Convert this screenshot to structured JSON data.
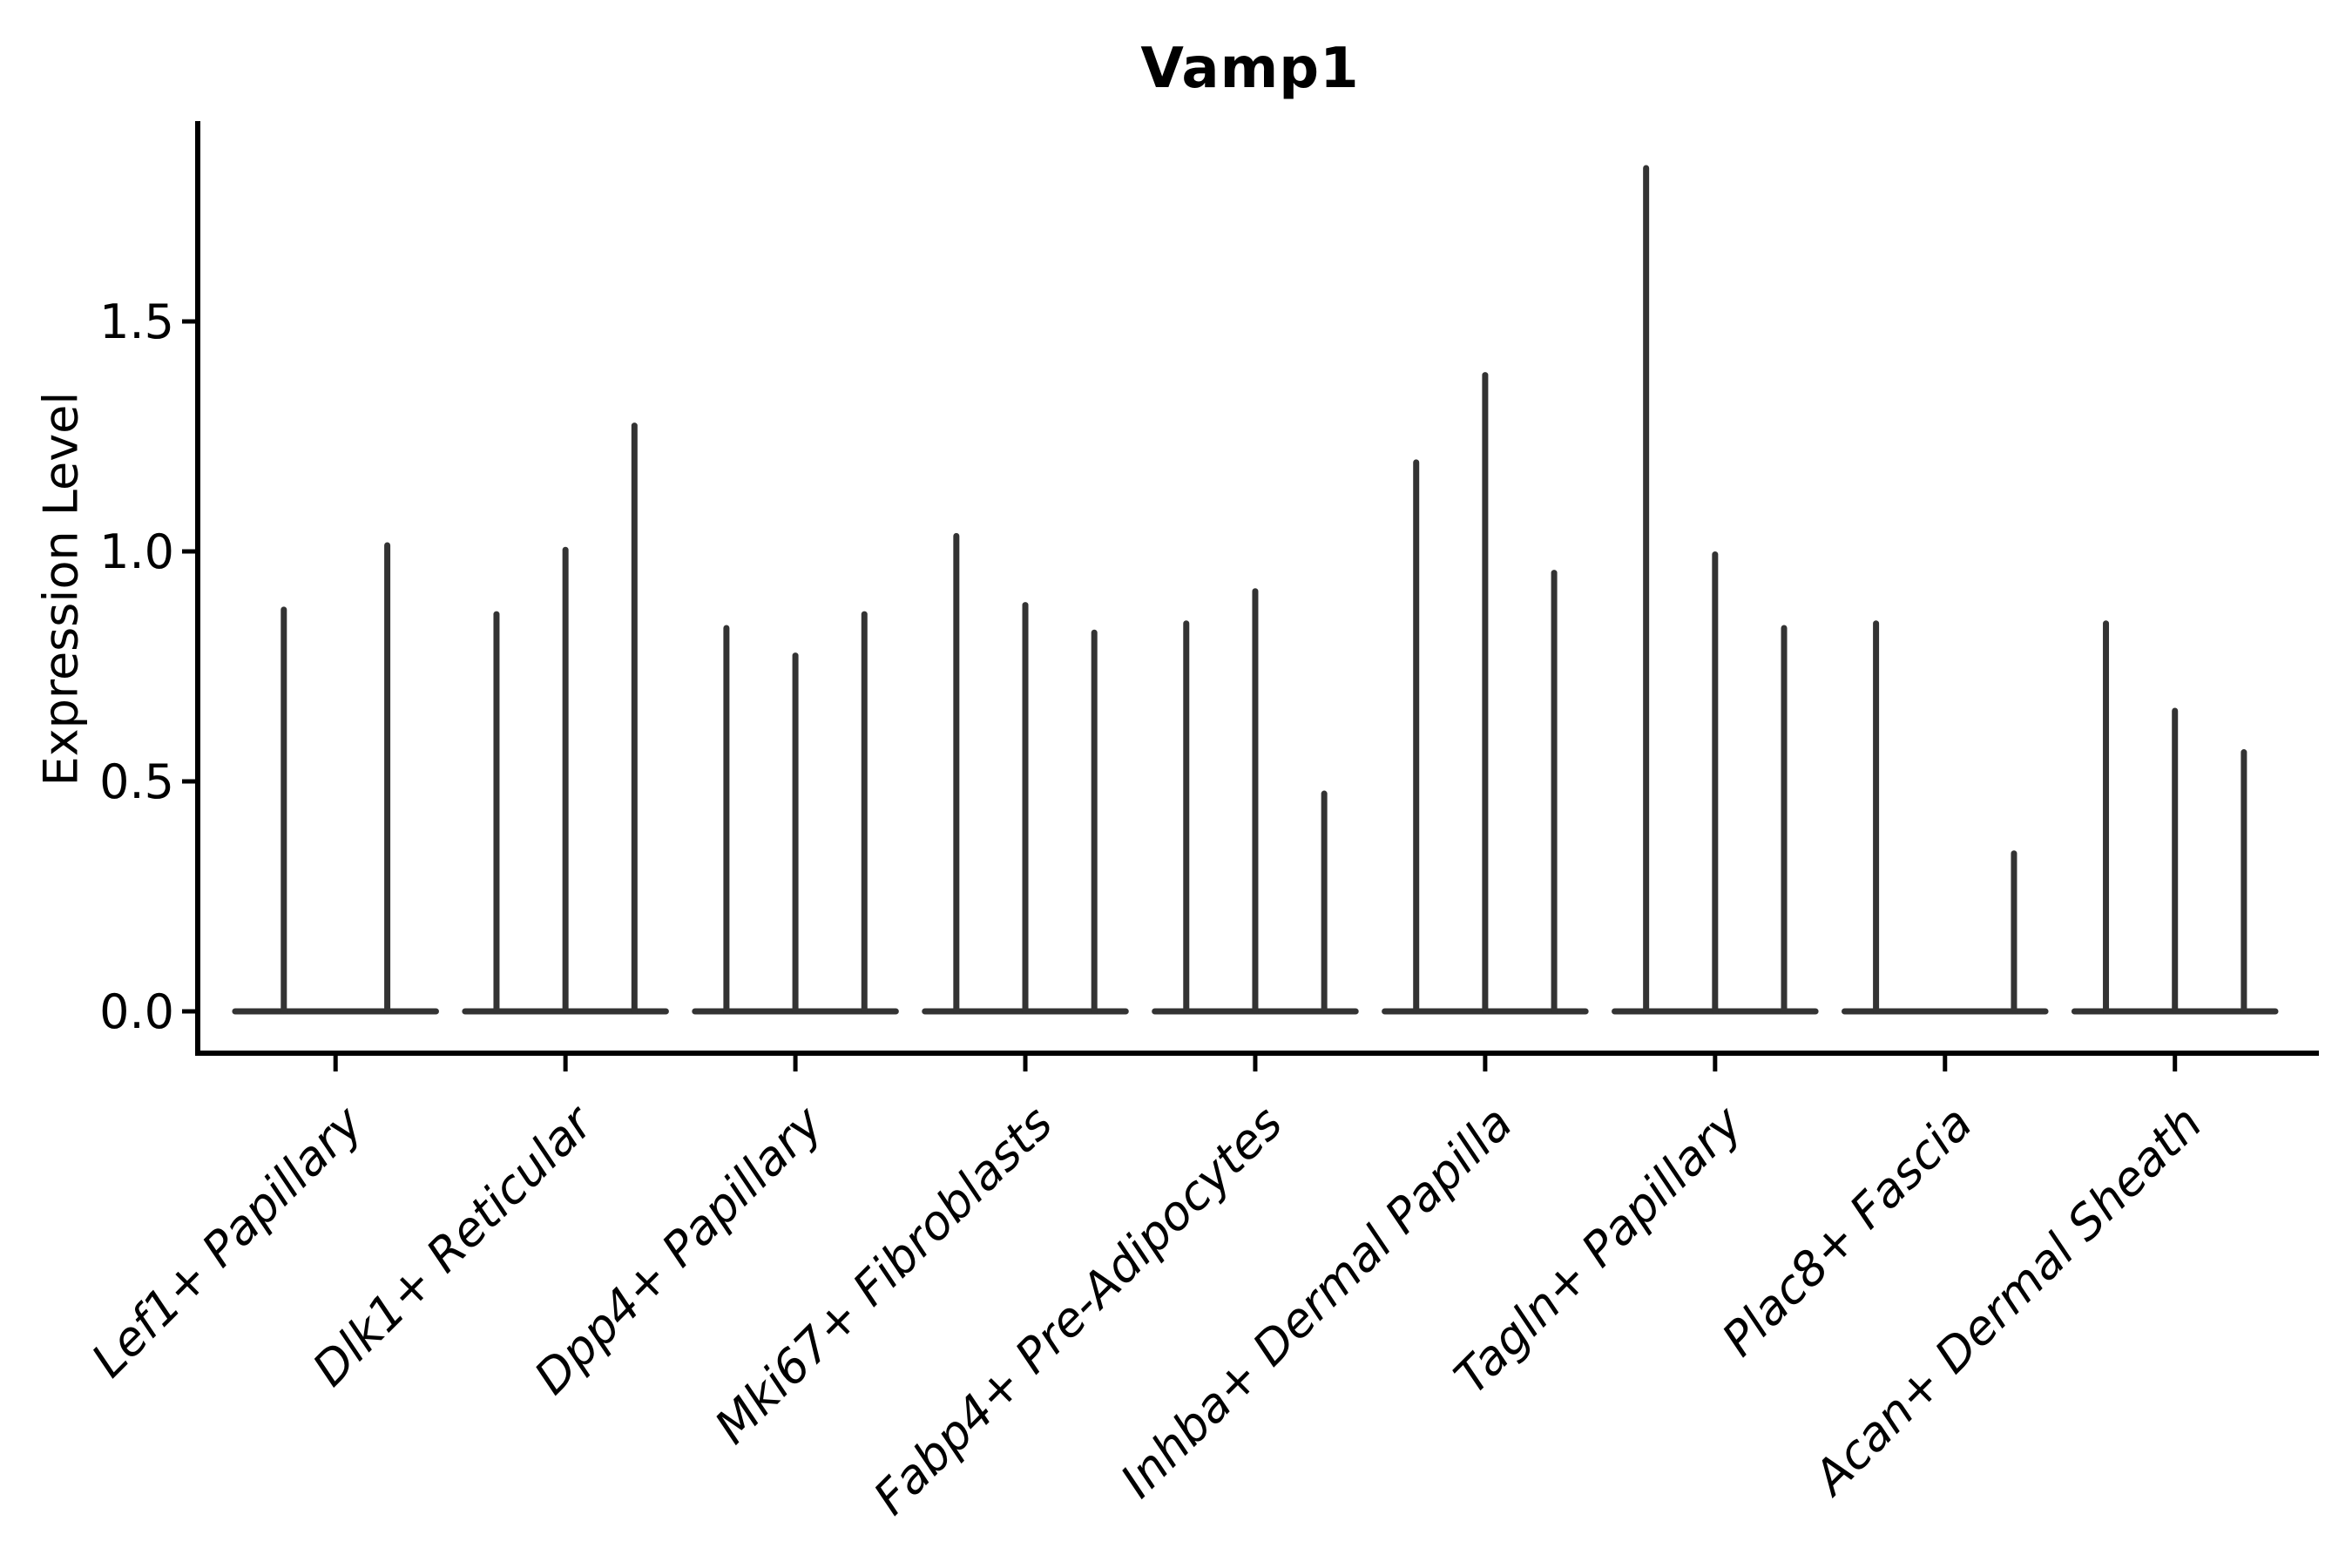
{
  "chart_data": {
    "type": "violin",
    "title": "Vamp1",
    "ylabel": "Expression Level",
    "xlabel": "",
    "ylim": [
      -0.09,
      1.93
    ],
    "ytick_values": [
      0.0,
      0.5,
      1.0,
      1.5
    ],
    "ytick_labels": [
      "0.0",
      "0.5",
      "1.0",
      "1.5"
    ],
    "xticklabel_rotation": 45,
    "xticklabel_style": "italic",
    "grid": false,
    "legend": false,
    "violin_color": "#333333",
    "axis_color": "#000000",
    "base_halfwidth": 0.45,
    "categories": [
      "Lef1+ Papillary",
      "Dlk1+ Reticular",
      "Dpp4+ Papillary",
      "Mki67+ Fibroblasts",
      "Fabp4+ Pre-Adipocytes",
      "Inhba+ Dermal Papilla",
      "Tagln+ Papillary",
      "Plac8+ Fascia",
      "Acan+ Dermal Sheath"
    ],
    "groups": [
      {
        "category": "Lef1+ Papillary",
        "spikes": [
          {
            "offset": -0.225,
            "value": 0.88
          },
          {
            "offset": 0.225,
            "value": 1.02
          }
        ]
      },
      {
        "category": "Dlk1+ Reticular",
        "spikes": [
          {
            "offset": -0.3,
            "value": 0.87
          },
          {
            "offset": 0.0,
            "value": 1.01
          },
          {
            "offset": 0.3,
            "value": 1.28
          }
        ]
      },
      {
        "category": "Dpp4+ Papillary",
        "spikes": [
          {
            "offset": -0.3,
            "value": 0.84
          },
          {
            "offset": 0.0,
            "value": 0.78
          },
          {
            "offset": 0.3,
            "value": 0.87
          }
        ]
      },
      {
        "category": "Mki67+ Fibroblasts",
        "spikes": [
          {
            "offset": -0.3,
            "value": 1.04
          },
          {
            "offset": 0.0,
            "value": 0.89
          },
          {
            "offset": 0.3,
            "value": 0.83
          }
        ]
      },
      {
        "category": "Fabp4+ Pre-Adipocytes",
        "spikes": [
          {
            "offset": -0.3,
            "value": 0.85
          },
          {
            "offset": 0.0,
            "value": 0.92
          },
          {
            "offset": 0.3,
            "value": 0.48
          }
        ]
      },
      {
        "category": "Inhba+ Dermal Papilla",
        "spikes": [
          {
            "offset": -0.3,
            "value": 1.2
          },
          {
            "offset": 0.0,
            "value": 1.39
          },
          {
            "offset": 0.3,
            "value": 0.96
          }
        ]
      },
      {
        "category": "Tagln+ Papillary",
        "spikes": [
          {
            "offset": -0.3,
            "value": 1.84
          },
          {
            "offset": 0.0,
            "value": 1.0
          },
          {
            "offset": 0.3,
            "value": 0.84
          }
        ]
      },
      {
        "category": "Plac8+ Fascia",
        "spikes": [
          {
            "offset": -0.3,
            "value": 0.85
          },
          {
            "offset": 0.3,
            "value": 0.35
          }
        ]
      },
      {
        "category": "Acan+ Dermal Sheath",
        "spikes": [
          {
            "offset": -0.3,
            "value": 0.85
          },
          {
            "offset": 0.0,
            "value": 0.66
          },
          {
            "offset": 0.3,
            "value": 0.57
          }
        ]
      }
    ]
  }
}
